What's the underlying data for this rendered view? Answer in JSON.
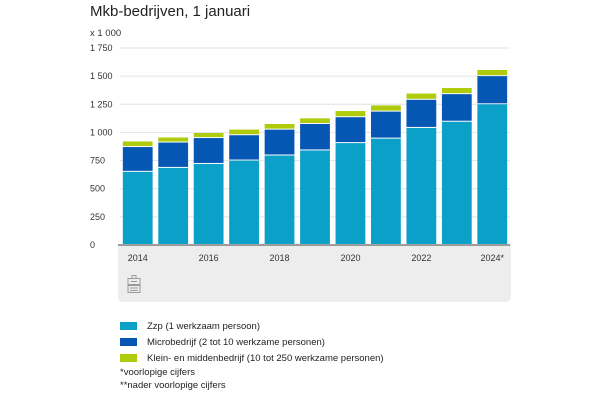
{
  "chart_data": {
    "type": "bar",
    "stacked": true,
    "title": "Mkb-bedrijven, 1 januari",
    "unit_label": "x 1 000",
    "xlabel": "",
    "ylabel": "",
    "ylim": [
      0,
      1750
    ],
    "yticks": [
      0,
      250,
      500,
      750,
      1000,
      1250,
      1500,
      1750
    ],
    "ytick_labels": [
      "0",
      "250",
      "500",
      "750",
      "1 000",
      "1 250",
      "1 500",
      "1 750"
    ],
    "grid": true,
    "categories": [
      "2014",
      "2015",
      "2016",
      "2017",
      "2018",
      "2019",
      "2020",
      "2021",
      "2022",
      "2023",
      "2024*"
    ],
    "xtick_labels": [
      "2014",
      "",
      "2016",
      "",
      "2018",
      "",
      "2020",
      "",
      "2022",
      "",
      "2024*"
    ],
    "series": [
      {
        "name": "Zzp (1 werkzaam persoon)",
        "color": "#0aa0c8",
        "values": [
          650,
          685,
          720,
          750,
          795,
          840,
          905,
          945,
          1040,
          1095,
          1250
        ]
      },
      {
        "name": "Microbedrijf (2 tot 10 werkzame personen)",
        "color": "#0656b4",
        "values": [
          220,
          225,
          230,
          225,
          230,
          235,
          230,
          240,
          250,
          245,
          250
        ]
      },
      {
        "name": "Klein- en middenbedrijf (10 tot 250 werkzame personen)",
        "color": "#afcb0c",
        "values": [
          50,
          45,
          45,
          50,
          50,
          50,
          55,
          55,
          55,
          55,
          55
        ]
      }
    ],
    "legend_position": "bottom",
    "notes": [
      "*voorlopige cijfers",
      "**nader voorlopige cijfers"
    ]
  }
}
